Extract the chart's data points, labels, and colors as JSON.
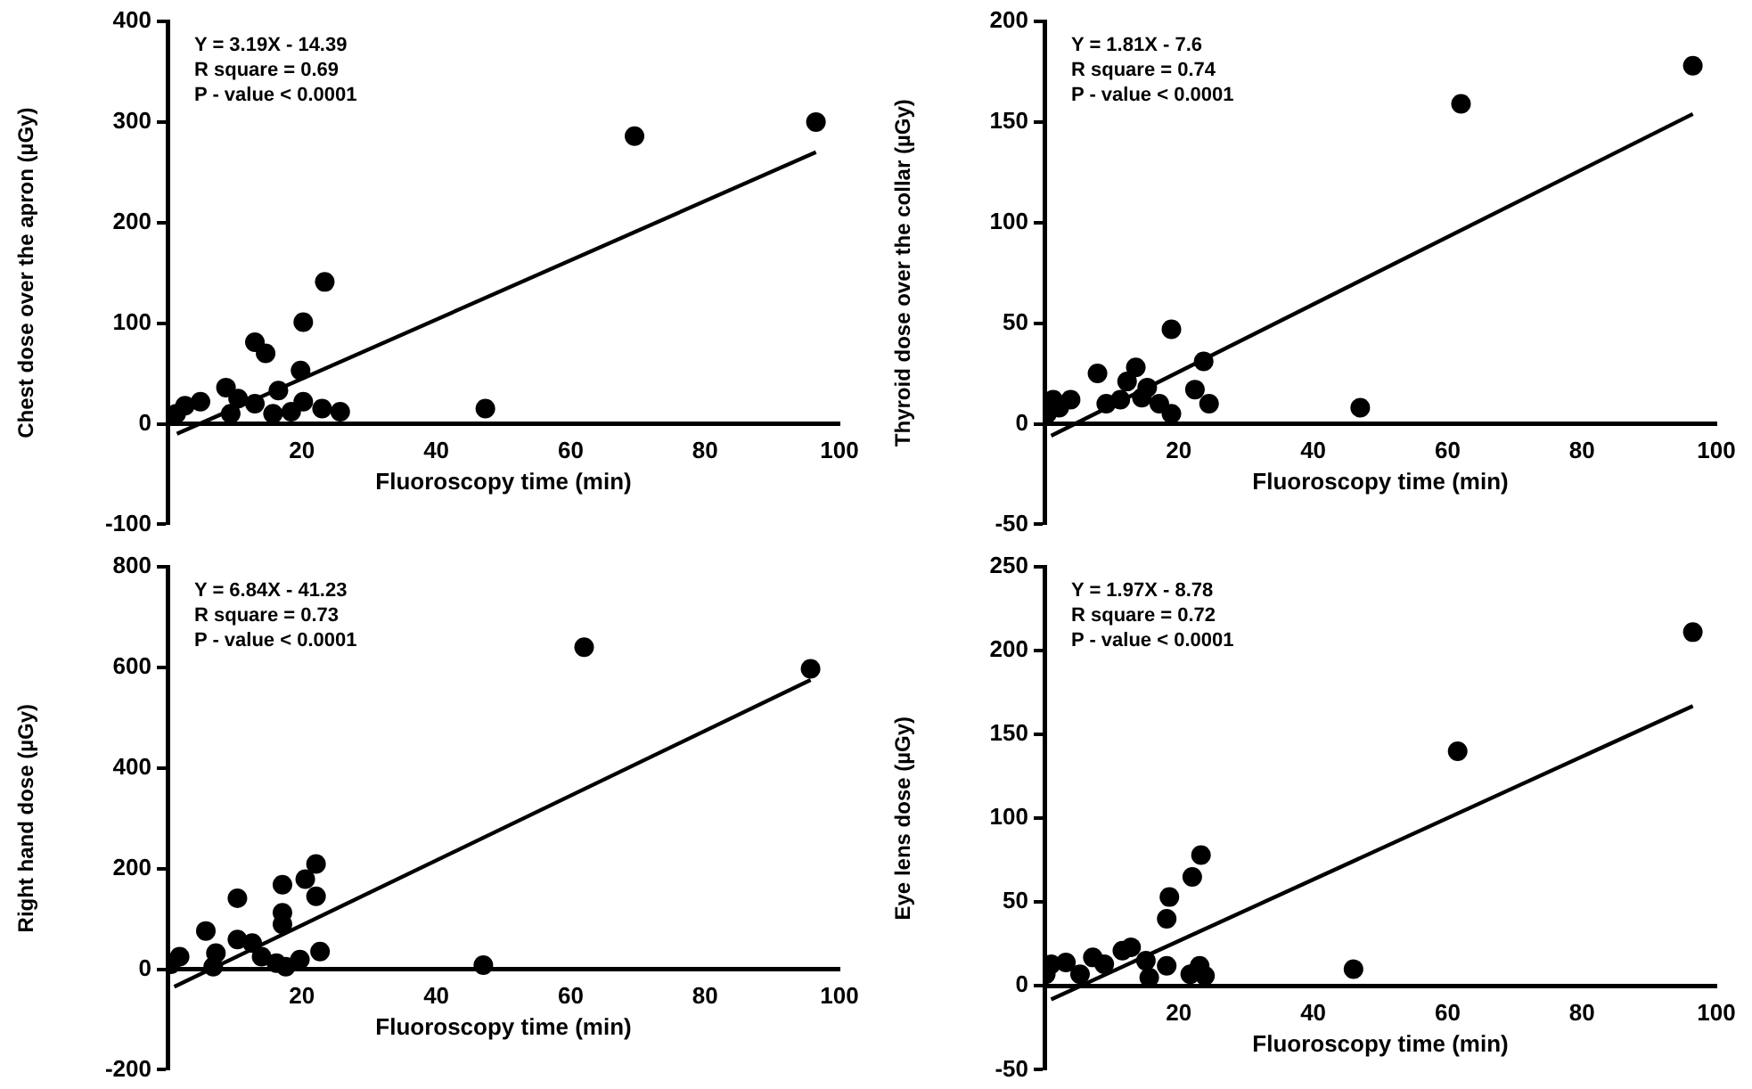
{
  "chart_data": [
    {
      "type": "scatter",
      "xlabel": "Fluoroscopy time (min)",
      "ylabel": "Chest dose over the apron (µGy)",
      "xlim": [
        0,
        100
      ],
      "xticks": [
        20,
        40,
        60,
        80,
        100
      ],
      "ylim": [
        -100,
        400
      ],
      "yticks": [
        -100,
        0,
        100,
        200,
        300,
        400
      ],
      "grid": false,
      "legend": false,
      "marker": "circle",
      "annotations": [
        "Y = 3.19X - 14.39",
        "R square = 0.69",
        "P - value < 0.0001"
      ],
      "series": [
        {
          "type": "scatter",
          "color": "#000000",
          "x": [
            23.4,
            20.2,
            13,
            14.6,
            19.8,
            8.7,
            16.5,
            10.5,
            13,
            20.2,
            23,
            25.7,
            18.4,
            4.9,
            2.6,
            1.3,
            9.4,
            15.7,
            47.3,
            69.5,
            96.5
          ],
          "values": [
            141,
            101,
            81,
            70,
            53,
            36,
            33,
            25,
            20,
            22,
            15,
            12,
            12,
            22,
            18,
            10,
            10,
            10,
            15,
            286,
            300
          ]
        },
        {
          "type": "line",
          "color": "#000000",
          "marker": "none",
          "x": [
            1.4,
            96.5
          ],
          "values": [
            -10,
            270
          ]
        }
      ]
    },
    {
      "type": "scatter",
      "xlabel": "Fluoroscopy time (min)",
      "ylabel": "Thyroid dose over the collar (µGy)",
      "xlim": [
        0,
        100
      ],
      "xticks": [
        20,
        40,
        60,
        80,
        100
      ],
      "ylim": [
        -50,
        200
      ],
      "yticks": [
        -50,
        0,
        50,
        100,
        150,
        200
      ],
      "grid": false,
      "legend": false,
      "marker": "circle",
      "annotations": [
        "Y = 1.81X - 7.6",
        "R square = 0.74",
        "P - value < 0.0001"
      ],
      "series": [
        {
          "type": "scatter",
          "color": "#000000",
          "x": [
            18.9,
            23.7,
            13.6,
            7.9,
            12.3,
            22.4,
            15.3,
            9.2,
            24.5,
            17.1,
            14.5,
            18.9,
            3.9,
            1.3,
            0.4,
            2.2,
            11.3,
            47,
            62,
            96.5
          ],
          "values": [
            47,
            31,
            28,
            25,
            21,
            17,
            18,
            10,
            10,
            10,
            13,
            5,
            12,
            12,
            5,
            8,
            12,
            8,
            159,
            178
          ]
        },
        {
          "type": "line",
          "color": "#000000",
          "marker": "none",
          "x": [
            1,
            96.5
          ],
          "values": [
            -6,
            154
          ]
        }
      ]
    },
    {
      "type": "scatter",
      "xlabel": "Fluoroscopy time (min)",
      "ylabel": "Right hand dose (µGy)",
      "xlim": [
        0,
        100
      ],
      "xticks": [
        20,
        40,
        60,
        80,
        100
      ],
      "ylim": [
        -200,
        800
      ],
      "yticks": [
        -200,
        0,
        200,
        400,
        600,
        800
      ],
      "grid": false,
      "legend": false,
      "marker": "circle",
      "annotations": [
        "Y = 6.84X - 41.23",
        "R square = 0.73",
        "P - value < 0.0001"
      ],
      "series": [
        {
          "type": "scatter",
          "color": "#000000",
          "x": [
            22.1,
            20.5,
            17.1,
            10.4,
            22.1,
            17.1,
            17.1,
            5.7,
            10.4,
            12.6,
            7.2,
            22.7,
            14,
            19.7,
            16.2,
            1.8,
            0.5,
            6.8,
            17.6,
            47,
            62,
            95.7
          ],
          "values": [
            209,
            179,
            168,
            141,
            145,
            112,
            89,
            76,
            59,
            52,
            32,
            35,
            25,
            19,
            12,
            25,
            10,
            5,
            5,
            8,
            640,
            597
          ]
        },
        {
          "type": "line",
          "color": "#000000",
          "marker": "none",
          "x": [
            1,
            95.7
          ],
          "values": [
            -35,
            575
          ]
        }
      ]
    },
    {
      "type": "scatter",
      "xlabel": "Fluoroscopy time (min)",
      "ylabel": "Eye lens dose (µGy)",
      "xlim": [
        0,
        100
      ],
      "xticks": [
        20,
        40,
        60,
        80,
        100
      ],
      "ylim": [
        -50,
        250
      ],
      "yticks": [
        -50,
        0,
        50,
        100,
        150,
        200,
        250
      ],
      "grid": false,
      "legend": false,
      "marker": "circle",
      "annotations": [
        "Y = 1.97X - 8.78",
        "R square = 0.72",
        "P - value < 0.0001"
      ],
      "series": [
        {
          "type": "scatter",
          "color": "#000000",
          "x": [
            23.3,
            22,
            18.6,
            18.2,
            12.9,
            11.6,
            7.2,
            8.9,
            3.2,
            1,
            0.2,
            15.1,
            18.2,
            23.1,
            15.6,
            21.7,
            23.9,
            5.3,
            46,
            61.5,
            96.5
          ],
          "values": [
            78,
            65,
            53,
            40,
            23,
            21,
            17,
            13,
            14,
            13,
            7,
            15,
            12,
            12,
            5,
            7,
            6,
            7,
            10,
            140,
            211
          ]
        },
        {
          "type": "line",
          "color": "#000000",
          "marker": "none",
          "x": [
            1,
            96.5
          ],
          "values": [
            -8,
            167
          ]
        }
      ]
    }
  ]
}
